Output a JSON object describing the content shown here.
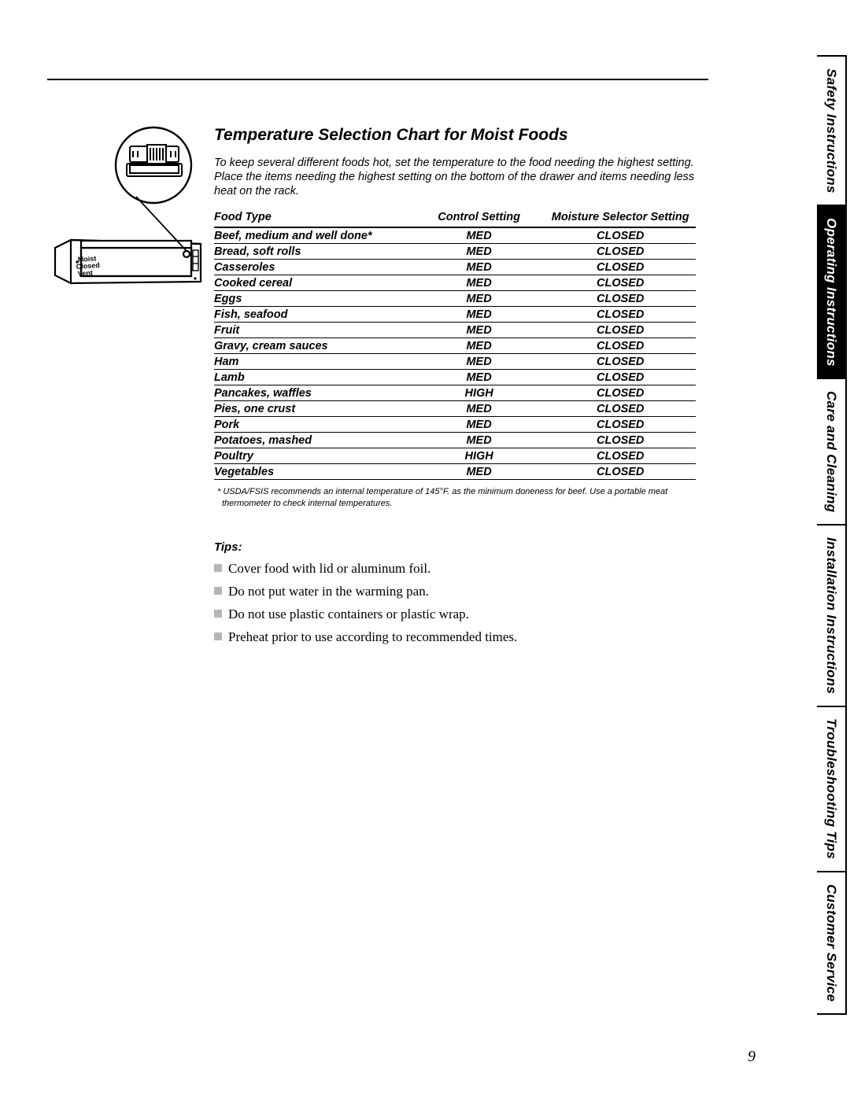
{
  "title": "Temperature Selection Chart for Moist Foods",
  "intro": "To keep several different foods hot, set the temperature to the food needing the highest setting. Place the items needing the highest setting on the bottom of the drawer and items needing less heat on the rack.",
  "illustration_labels": {
    "top": "Moist",
    "mid": "Closed",
    "bot": "Vent"
  },
  "columns": {
    "food": "Food Type",
    "control": "Control Setting",
    "moisture": "Moisture Selector Setting"
  },
  "rows": [
    {
      "food": "Beef, medium and well done*",
      "control": "MED",
      "moisture": "CLOSED"
    },
    {
      "food": "Bread, soft rolls",
      "control": "MED",
      "moisture": "CLOSED"
    },
    {
      "food": "Casseroles",
      "control": "MED",
      "moisture": "CLOSED"
    },
    {
      "food": "Cooked cereal",
      "control": "MED",
      "moisture": "CLOSED"
    },
    {
      "food": "Eggs",
      "control": "MED",
      "moisture": "CLOSED"
    },
    {
      "food": "Fish, seafood",
      "control": "MED",
      "moisture": "CLOSED"
    },
    {
      "food": "Fruit",
      "control": "MED",
      "moisture": "CLOSED"
    },
    {
      "food": "Gravy, cream sauces",
      "control": "MED",
      "moisture": "CLOSED"
    },
    {
      "food": "Ham",
      "control": "MED",
      "moisture": "CLOSED"
    },
    {
      "food": "Lamb",
      "control": "MED",
      "moisture": "CLOSED"
    },
    {
      "food": "Pancakes, waffles",
      "control": "HIGH",
      "moisture": "CLOSED"
    },
    {
      "food": "Pies, one crust",
      "control": "MED",
      "moisture": "CLOSED"
    },
    {
      "food": "Pork",
      "control": "MED",
      "moisture": "CLOSED"
    },
    {
      "food": "Potatoes, mashed",
      "control": "MED",
      "moisture": "CLOSED"
    },
    {
      "food": "Poultry",
      "control": "HIGH",
      "moisture": "CLOSED"
    },
    {
      "food": "Vegetables",
      "control": "MED",
      "moisture": "CLOSED"
    }
  ],
  "footnote": "* USDA/FSIS recommends an internal temperature of 145°F. as the minimum doneness for beef. Use a portable meat thermometer to check internal temperatures.",
  "tips_heading": "Tips:",
  "tips": [
    "Cover food with lid or aluminum foil.",
    "Do not put water in the warming pan.",
    "Do not use plastic containers or plastic wrap.",
    "Preheat prior to use according to recommended times."
  ],
  "sidetabs": [
    {
      "label": "Safety Instructions",
      "active": false
    },
    {
      "label": "Operating Instructions",
      "active": true
    },
    {
      "label": "Care and Cleaning",
      "active": false
    },
    {
      "label": "Installation Instructions",
      "active": false
    },
    {
      "label": "Troubleshooting Tips",
      "active": false
    },
    {
      "label": "Customer Service",
      "active": false
    }
  ],
  "page_number": "9"
}
